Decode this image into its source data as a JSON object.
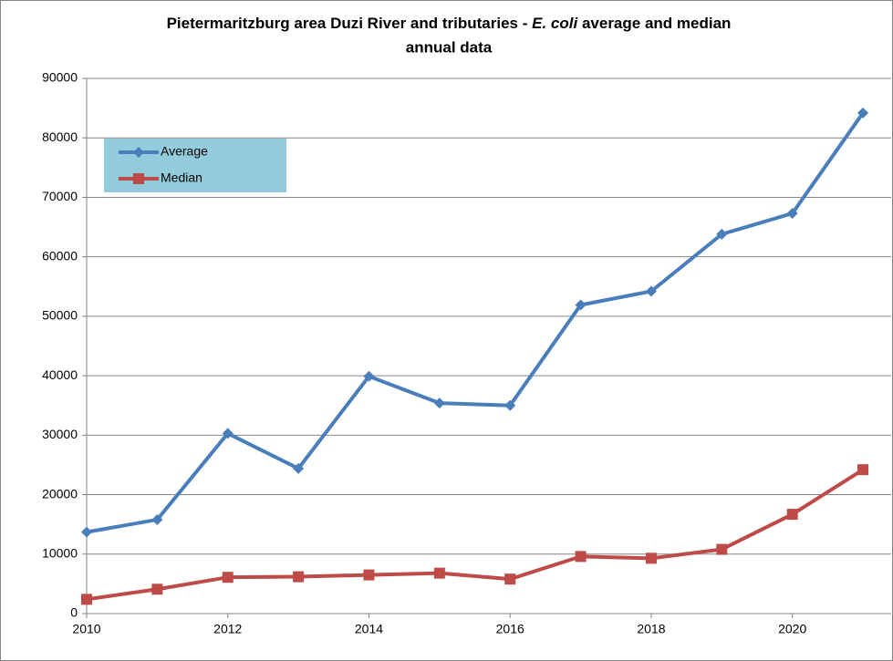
{
  "chart_data": {
    "type": "line",
    "title_parts": [
      "Pietermaritzburg area Duzi River and tributaries -",
      "E. coli",
      "average and median",
      "annual data"
    ],
    "x": [
      2010,
      2011,
      2012,
      2013,
      2014,
      2015,
      2016,
      2017,
      2018,
      2019,
      2020,
      2021
    ],
    "series": [
      {
        "name": "Average",
        "color": "#4a7ebb",
        "marker": "diamond",
        "values": [
          13700,
          15800,
          30300,
          24400,
          39900,
          35400,
          35000,
          51900,
          54200,
          63800,
          67300,
          84200
        ]
      },
      {
        "name": "Median",
        "color": "#be4b48",
        "marker": "square",
        "values": [
          2400,
          4100,
          6100,
          6200,
          6500,
          6800,
          5800,
          9600,
          9300,
          10800,
          16700,
          24200
        ]
      }
    ],
    "xlim": [
      2010,
      2021.4
    ],
    "xticks": [
      2010,
      2012,
      2014,
      2016,
      2018,
      2020
    ],
    "ylim": [
      0,
      90000
    ],
    "yticks": [
      0,
      10000,
      20000,
      30000,
      40000,
      50000,
      60000,
      70000,
      80000,
      90000
    ],
    "grid": true,
    "legend_background": "#93cddd"
  }
}
